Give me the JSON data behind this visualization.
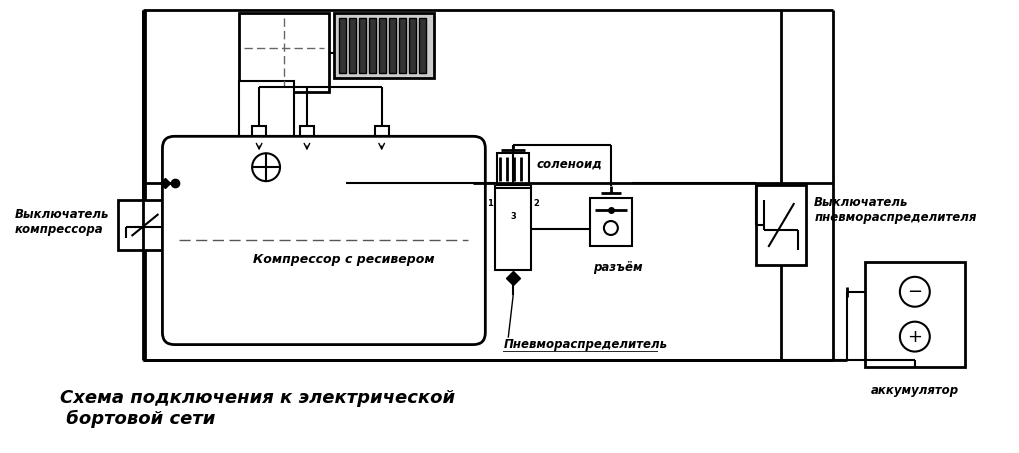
{
  "bg_color": "#ffffff",
  "line_color": "#000000",
  "title_text": "Схема подключения к электрической\n бортовой сети",
  "label_kompressor_vykl": "Выключатель\nкомпрессора",
  "label_kompressor": "Компрессор с ресивером",
  "label_solenoind": "соленоид",
  "label_razem": "разъём",
  "label_pnevmo": "Пневмораспределитель",
  "label_vykl_pnevmo": "Выключатель\nпневмораспределителя",
  "label_akk": "аккумулятор",
  "label_123": "1  2\n  3"
}
